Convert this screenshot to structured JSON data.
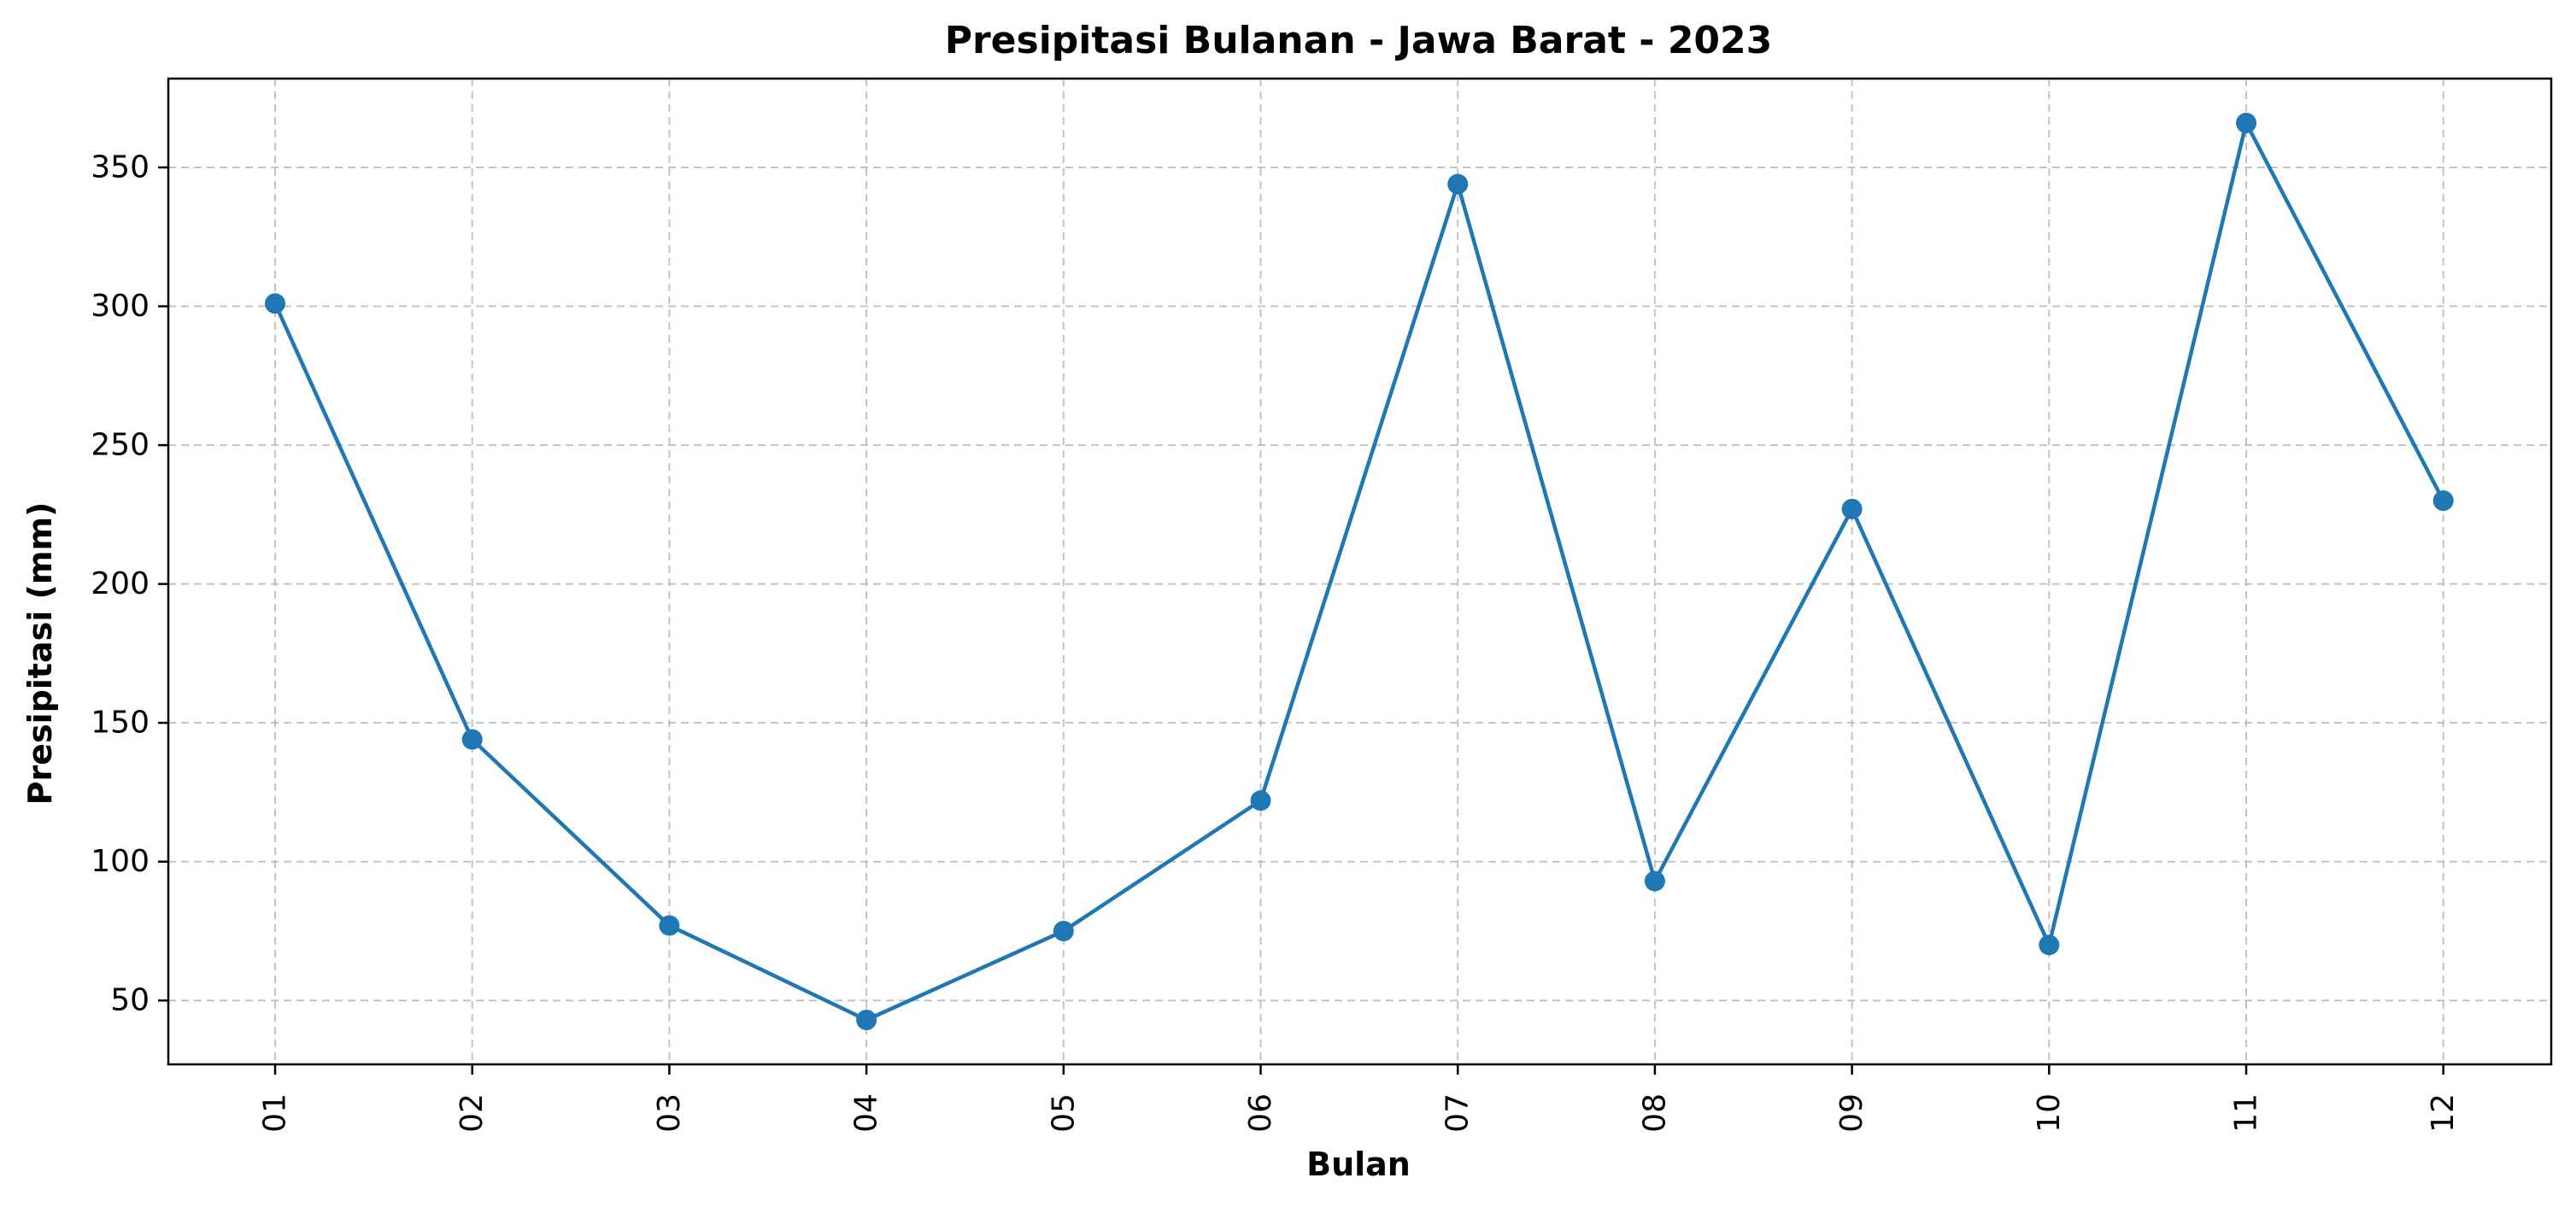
{
  "chart_data": {
    "type": "line",
    "title": "Presipitasi Bulanan - Jawa Barat - 2023",
    "xlabel": "Bulan",
    "ylabel": "Presipitasi (mm)",
    "categories": [
      "01",
      "02",
      "03",
      "04",
      "05",
      "06",
      "07",
      "08",
      "09",
      "10",
      "11",
      "12"
    ],
    "series": [
      {
        "values": [
          301,
          144,
          77,
          43,
          75,
          122,
          344,
          93,
          227,
          70,
          366,
          230
        ]
      }
    ],
    "ylim": [
      27,
      382
    ],
    "yticks": [
      50,
      100,
      150,
      200,
      250,
      300,
      350
    ],
    "grid": true,
    "line_color": "#1f77b4",
    "grid_color": "#b0b0b0",
    "marker": "circle"
  }
}
